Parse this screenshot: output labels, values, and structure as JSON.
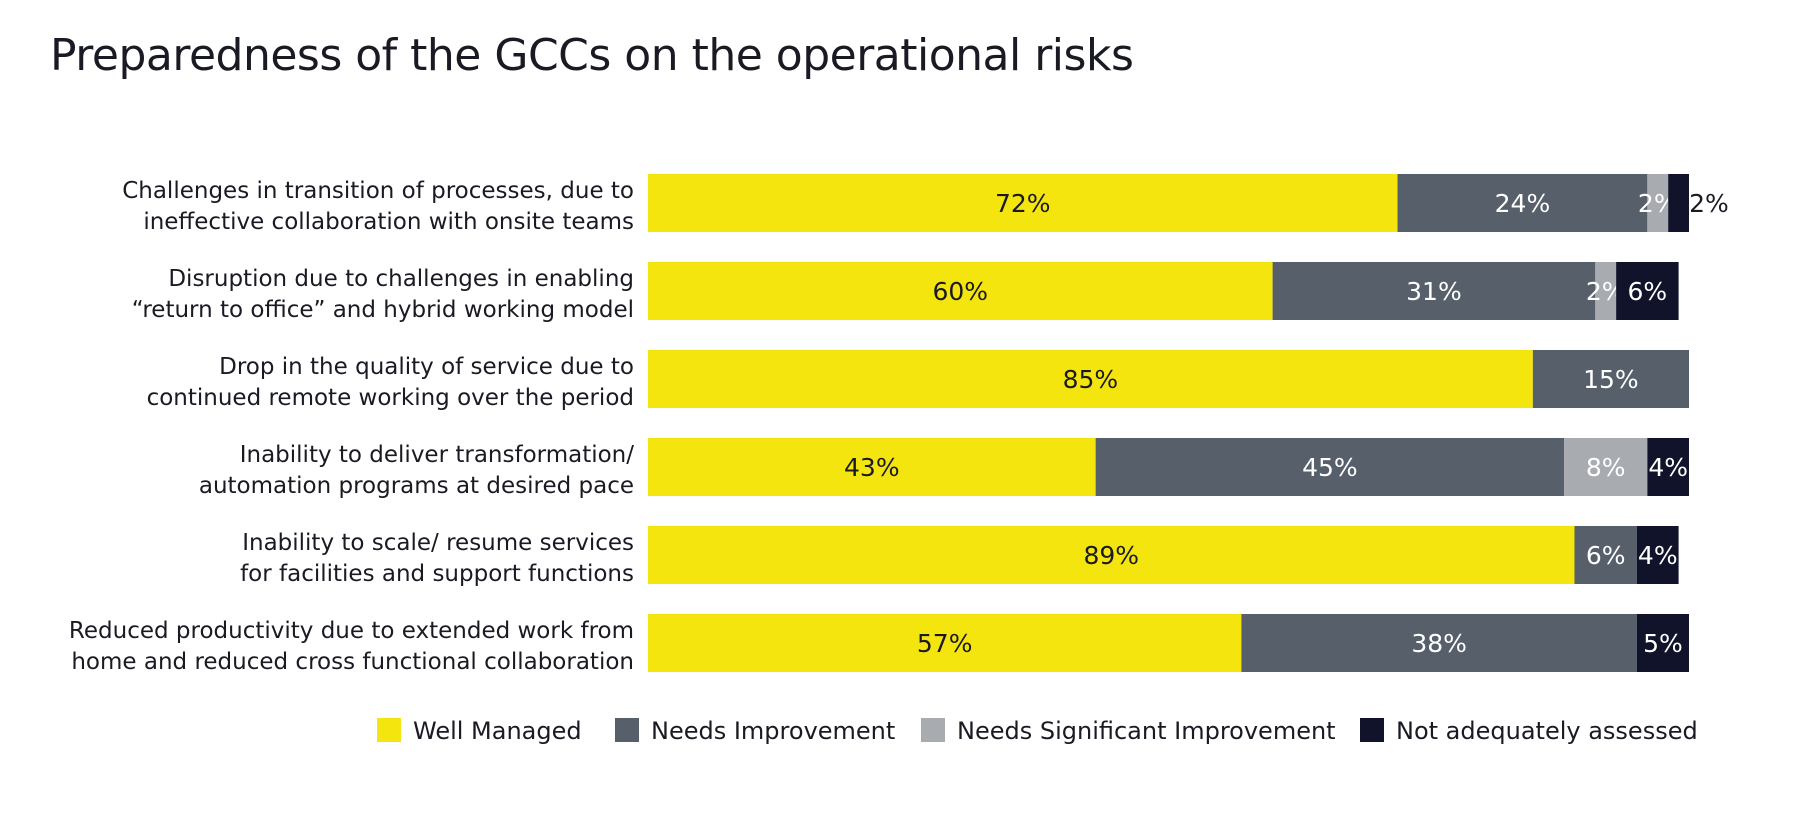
{
  "title": "Preparedness of the GCCs on the operational risks",
  "chart_data": {
    "type": "bar",
    "orientation": "horizontal",
    "stacked": true,
    "title": "Preparedness of the GCCs on the operational risks",
    "categories": [
      [
        "Challenges in transition of processes, due to",
        "ineffective collaboration with onsite teams"
      ],
      [
        "Disruption due to challenges in enabling",
        "“return to office” and hybrid working model"
      ],
      [
        "Drop in the quality of service due to",
        "continued remote working over the period"
      ],
      [
        "Inability to deliver transformation/",
        "automation programs at desired pace"
      ],
      [
        "Inability to scale/ resume services",
        "for facilities and support functions"
      ],
      [
        "Reduced productivity due to extended work from",
        "home and reduced cross functional collaboration"
      ]
    ],
    "series": [
      {
        "name": "Well Managed",
        "color": "#f5e50e",
        "label_color": "#1a1a24",
        "values": [
          72,
          60,
          85,
          43,
          89,
          57
        ]
      },
      {
        "name": "Needs Improvement",
        "color": "#575f6b",
        "label_color": "#ffffff",
        "values": [
          24,
          31,
          15,
          45,
          6,
          38
        ]
      },
      {
        "name": "Needs Significant Improvement",
        "color": "#a8abb0",
        "label_color": "#ffffff",
        "values": [
          2,
          2,
          0,
          8,
          0,
          0
        ]
      },
      {
        "name": "Not adequately assessed",
        "color": "#10132a",
        "label_color": "#ffffff",
        "values": [
          2,
          6,
          0,
          4,
          4,
          5
        ]
      }
    ],
    "value_suffix": "%",
    "xlim": [
      0,
      100
    ],
    "grid": false,
    "legend_position": "bottom"
  }
}
